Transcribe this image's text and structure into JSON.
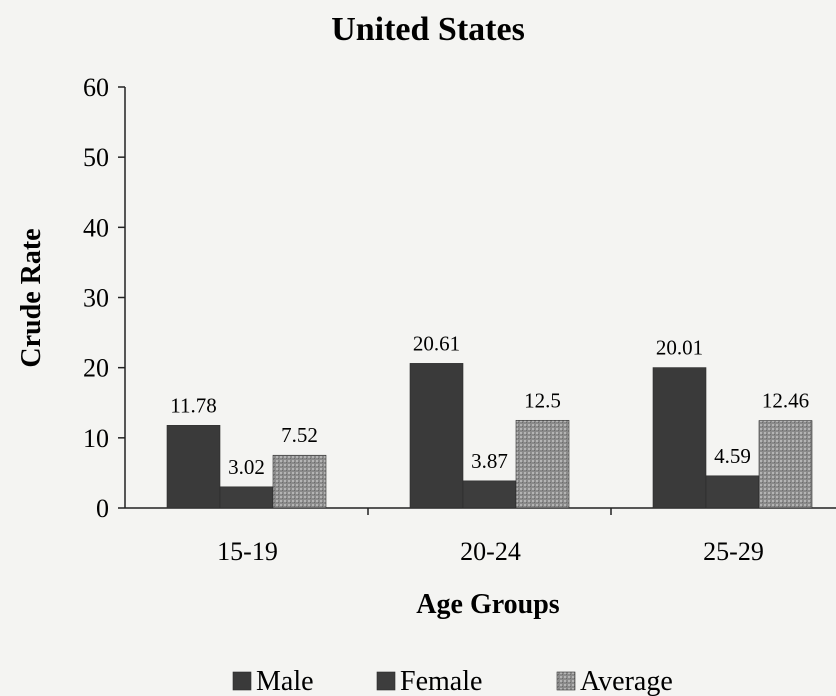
{
  "chart_data": {
    "type": "bar",
    "title": "United States",
    "xlabel": "Age Groups",
    "ylabel": "Crude Rate",
    "categories": [
      "15-19",
      "20-24",
      "25-29"
    ],
    "series": [
      {
        "name": "Male",
        "values": [
          11.78,
          20.61,
          20.01
        ],
        "labels": [
          "11.78",
          "20.61",
          "20.01"
        ],
        "color": "#3a3a3a"
      },
      {
        "name": "Female",
        "values": [
          3.02,
          3.87,
          4.59
        ],
        "labels": [
          "3.02",
          "3.87",
          "4.59"
        ],
        "color": "#3d3d3d"
      },
      {
        "name": "Average",
        "values": [
          7.52,
          12.5,
          12.46
        ],
        "labels": [
          "7.52",
          "12.5",
          "12.46"
        ],
        "color": "#8e8e8e"
      }
    ],
    "ylim": [
      0,
      60
    ],
    "yticks": [
      "0",
      "10",
      "20",
      "30",
      "40",
      "50",
      "60"
    ],
    "grid": false,
    "legend": "bottom"
  }
}
